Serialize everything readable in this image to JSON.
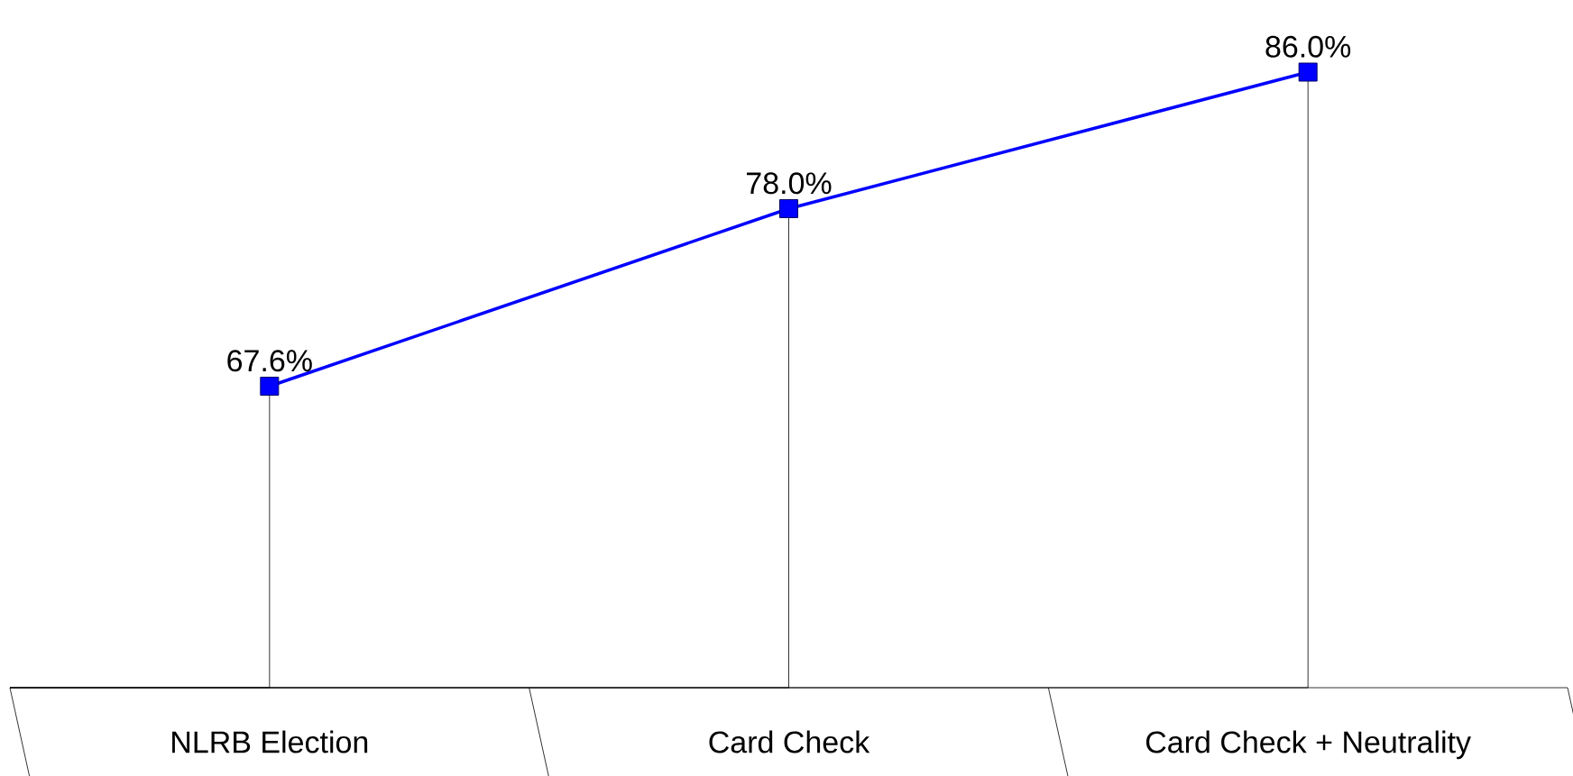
{
  "chart_data": {
    "type": "line",
    "categories": [
      "NLRB Election",
      "Card Check",
      "Card Check + Neutrality"
    ],
    "series": [
      {
        "color": "#0000ff",
        "values": [
          67.6,
          78.0,
          86.0
        ],
        "value_labels": [
          "67.6%",
          "78.0%",
          "86.0%"
        ]
      }
    ],
    "tick_labels": "x",
    "marker": "square",
    "line_style": "solid"
  }
}
